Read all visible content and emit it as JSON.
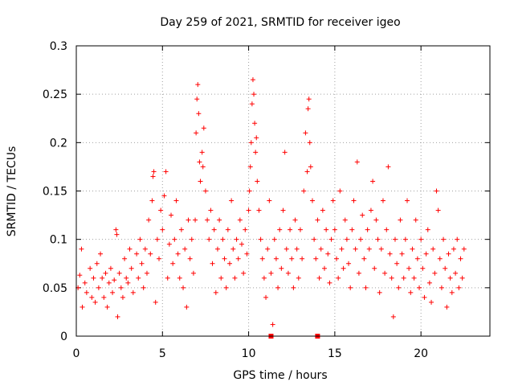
{
  "chart_data": {
    "type": "scatter",
    "title": "Day 259 of 2021, SRMTID for receiver igeo",
    "xlabel": "GPS time / hours",
    "ylabel": "SRMTID / TECUs",
    "xlim": [
      0,
      24
    ],
    "ylim": [
      0,
      0.3
    ],
    "xticks": [
      0,
      5,
      10,
      15,
      20
    ],
    "yticks": [
      0,
      0.05,
      0.1,
      0.15,
      0.2,
      0.25,
      0.3
    ],
    "xtick_labels": [
      "0",
      "5",
      "10",
      "15",
      "20"
    ],
    "ytick_labels": [
      "0",
      "0.05",
      "0.1",
      "0.15",
      "0.2",
      "0.25",
      "0.3"
    ],
    "grid": true,
    "marker": "+",
    "color": "#ff0000",
    "series": [
      {
        "name": "SRMTID",
        "points": [
          [
            0.1,
            0.05
          ],
          [
            0.2,
            0.063
          ],
          [
            0.3,
            0.09
          ],
          [
            0.35,
            0.03
          ],
          [
            0.5,
            0.055
          ],
          [
            0.6,
            0.045
          ],
          [
            0.8,
            0.07
          ],
          [
            0.9,
            0.04
          ],
          [
            1.0,
            0.06
          ],
          [
            1.1,
            0.035
          ],
          [
            1.2,
            0.075
          ],
          [
            1.3,
            0.05
          ],
          [
            1.4,
            0.085
          ],
          [
            1.5,
            0.06
          ],
          [
            1.6,
            0.04
          ],
          [
            1.7,
            0.065
          ],
          [
            1.8,
            0.03
          ],
          [
            1.9,
            0.055
          ],
          [
            2.0,
            0.07
          ],
          [
            2.1,
            0.045
          ],
          [
            2.2,
            0.058
          ],
          [
            2.3,
            0.11
          ],
          [
            2.35,
            0.105
          ],
          [
            2.4,
            0.02
          ],
          [
            2.5,
            0.065
          ],
          [
            2.6,
            0.05
          ],
          [
            2.7,
            0.04
          ],
          [
            2.8,
            0.08
          ],
          [
            2.9,
            0.06
          ],
          [
            3.0,
            0.055
          ],
          [
            3.1,
            0.09
          ],
          [
            3.2,
            0.07
          ],
          [
            3.3,
            0.045
          ],
          [
            3.5,
            0.085
          ],
          [
            3.6,
            0.06
          ],
          [
            3.7,
            0.1
          ],
          [
            3.8,
            0.075
          ],
          [
            3.9,
            0.05
          ],
          [
            4.0,
            0.09
          ],
          [
            4.1,
            0.065
          ],
          [
            4.2,
            0.12
          ],
          [
            4.3,
            0.085
          ],
          [
            4.4,
            0.14
          ],
          [
            4.45,
            0.165
          ],
          [
            4.5,
            0.17
          ],
          [
            4.6,
            0.035
          ],
          [
            4.7,
            0.1
          ],
          [
            4.8,
            0.08
          ],
          [
            4.9,
            0.13
          ],
          [
            5.0,
            0.11
          ],
          [
            5.1,
            0.145
          ],
          [
            5.2,
            0.17
          ],
          [
            5.3,
            0.06
          ],
          [
            5.4,
            0.095
          ],
          [
            5.5,
            0.125
          ],
          [
            5.6,
            0.075
          ],
          [
            5.7,
            0.1
          ],
          [
            5.8,
            0.14
          ],
          [
            5.9,
            0.085
          ],
          [
            6.0,
            0.06
          ],
          [
            6.1,
            0.11
          ],
          [
            6.2,
            0.05
          ],
          [
            6.3,
            0.09
          ],
          [
            6.4,
            0.03
          ],
          [
            6.5,
            0.12
          ],
          [
            6.6,
            0.08
          ],
          [
            6.7,
            0.1
          ],
          [
            6.8,
            0.065
          ],
          [
            6.9,
            0.12
          ],
          [
            6.95,
            0.21
          ],
          [
            7.0,
            0.245
          ],
          [
            7.05,
            0.26
          ],
          [
            7.1,
            0.23
          ],
          [
            7.15,
            0.18
          ],
          [
            7.2,
            0.16
          ],
          [
            7.3,
            0.19
          ],
          [
            7.35,
            0.175
          ],
          [
            7.4,
            0.215
          ],
          [
            7.5,
            0.15
          ],
          [
            7.6,
            0.12
          ],
          [
            7.7,
            0.1
          ],
          [
            7.8,
            0.13
          ],
          [
            7.9,
            0.075
          ],
          [
            8.0,
            0.11
          ],
          [
            8.1,
            0.045
          ],
          [
            8.2,
            0.09
          ],
          [
            8.3,
            0.12
          ],
          [
            8.4,
            0.06
          ],
          [
            8.5,
            0.1
          ],
          [
            8.6,
            0.08
          ],
          [
            8.7,
            0.05
          ],
          [
            8.8,
            0.11
          ],
          [
            8.9,
            0.075
          ],
          [
            9.0,
            0.14
          ],
          [
            9.1,
            0.09
          ],
          [
            9.2,
            0.06
          ],
          [
            9.3,
            0.1
          ],
          [
            9.4,
            0.08
          ],
          [
            9.5,
            0.12
          ],
          [
            9.6,
            0.095
          ],
          [
            9.7,
            0.065
          ],
          [
            9.8,
            0.11
          ],
          [
            9.9,
            0.085
          ],
          [
            10.0,
            0.13
          ],
          [
            10.05,
            0.15
          ],
          [
            10.1,
            0.175
          ],
          [
            10.15,
            0.2
          ],
          [
            10.2,
            0.24
          ],
          [
            10.25,
            0.265
          ],
          [
            10.3,
            0.25
          ],
          [
            10.35,
            0.22
          ],
          [
            10.4,
            0.19
          ],
          [
            10.45,
            0.205
          ],
          [
            10.5,
            0.16
          ],
          [
            10.6,
            0.13
          ],
          [
            10.7,
            0.1
          ],
          [
            10.8,
            0.08
          ],
          [
            10.9,
            0.06
          ],
          [
            11.0,
            0.04
          ],
          [
            11.1,
            0.09
          ],
          [
            11.2,
            0.14
          ],
          [
            11.3,
            0.065
          ],
          [
            11.4,
            0.012
          ],
          [
            11.5,
            0.1
          ],
          [
            11.6,
            0.08
          ],
          [
            11.7,
            0.05
          ],
          [
            11.8,
            0.11
          ],
          [
            11.9,
            0.07
          ],
          [
            12.0,
            0.13
          ],
          [
            12.1,
            0.19
          ],
          [
            12.2,
            0.09
          ],
          [
            12.3,
            0.065
          ],
          [
            12.4,
            0.11
          ],
          [
            12.5,
            0.08
          ],
          [
            12.6,
            0.05
          ],
          [
            12.7,
            0.12
          ],
          [
            12.8,
            0.09
          ],
          [
            12.9,
            0.06
          ],
          [
            13.0,
            0.11
          ],
          [
            13.1,
            0.08
          ],
          [
            13.2,
            0.15
          ],
          [
            13.3,
            0.21
          ],
          [
            13.4,
            0.17
          ],
          [
            13.45,
            0.235
          ],
          [
            13.5,
            0.245
          ],
          [
            13.55,
            0.2
          ],
          [
            13.6,
            0.175
          ],
          [
            13.7,
            0.14
          ],
          [
            13.8,
            0.1
          ],
          [
            13.9,
            0.08
          ],
          [
            14.0,
            0.12
          ],
          [
            14.1,
            0.06
          ],
          [
            14.2,
            0.09
          ],
          [
            14.3,
            0.13
          ],
          [
            14.4,
            0.07
          ],
          [
            14.5,
            0.11
          ],
          [
            14.6,
            0.085
          ],
          [
            14.7,
            0.055
          ],
          [
            14.8,
            0.1
          ],
          [
            14.9,
            0.14
          ],
          [
            15.0,
            0.11
          ],
          [
            15.1,
            0.08
          ],
          [
            15.2,
            0.06
          ],
          [
            15.3,
            0.15
          ],
          [
            15.4,
            0.09
          ],
          [
            15.5,
            0.07
          ],
          [
            15.6,
            0.12
          ],
          [
            15.7,
            0.1
          ],
          [
            15.8,
            0.075
          ],
          [
            15.9,
            0.05
          ],
          [
            16.0,
            0.11
          ],
          [
            16.1,
            0.14
          ],
          [
            16.2,
            0.09
          ],
          [
            16.3,
            0.18
          ],
          [
            16.4,
            0.065
          ],
          [
            16.5,
            0.1
          ],
          [
            16.6,
            0.125
          ],
          [
            16.7,
            0.08
          ],
          [
            16.8,
            0.05
          ],
          [
            16.9,
            0.11
          ],
          [
            17.0,
            0.09
          ],
          [
            17.1,
            0.13
          ],
          [
            17.2,
            0.16
          ],
          [
            17.3,
            0.07
          ],
          [
            17.4,
            0.12
          ],
          [
            17.5,
            0.1
          ],
          [
            17.6,
            0.045
          ],
          [
            17.7,
            0.09
          ],
          [
            17.8,
            0.14
          ],
          [
            17.9,
            0.065
          ],
          [
            18.0,
            0.11
          ],
          [
            18.1,
            0.175
          ],
          [
            18.2,
            0.085
          ],
          [
            18.3,
            0.06
          ],
          [
            18.4,
            0.02
          ],
          [
            18.5,
            0.1
          ],
          [
            18.6,
            0.075
          ],
          [
            18.7,
            0.05
          ],
          [
            18.8,
            0.12
          ],
          [
            18.9,
            0.085
          ],
          [
            19.0,
            0.06
          ],
          [
            19.1,
            0.1
          ],
          [
            19.2,
            0.14
          ],
          [
            19.3,
            0.07
          ],
          [
            19.4,
            0.045
          ],
          [
            19.5,
            0.09
          ],
          [
            19.6,
            0.06
          ],
          [
            19.7,
            0.12
          ],
          [
            19.8,
            0.08
          ],
          [
            19.9,
            0.05
          ],
          [
            20.0,
            0.1
          ],
          [
            20.1,
            0.07
          ],
          [
            20.2,
            0.04
          ],
          [
            20.3,
            0.085
          ],
          [
            20.4,
            0.11
          ],
          [
            20.5,
            0.055
          ],
          [
            20.6,
            0.035
          ],
          [
            20.7,
            0.09
          ],
          [
            20.8,
            0.065
          ],
          [
            20.9,
            0.15
          ],
          [
            21.0,
            0.13
          ],
          [
            21.1,
            0.08
          ],
          [
            21.2,
            0.05
          ],
          [
            21.3,
            0.1
          ],
          [
            21.4,
            0.07
          ],
          [
            21.5,
            0.03
          ],
          [
            21.6,
            0.085
          ],
          [
            21.7,
            0.06
          ],
          [
            21.8,
            0.045
          ],
          [
            21.9,
            0.09
          ],
          [
            22.0,
            0.065
          ],
          [
            22.1,
            0.1
          ],
          [
            22.2,
            0.05
          ],
          [
            22.3,
            0.08
          ],
          [
            22.4,
            0.06
          ],
          [
            22.5,
            0.09
          ]
        ]
      }
    ],
    "zero_markers_x": [
      11.3,
      14.0
    ]
  }
}
